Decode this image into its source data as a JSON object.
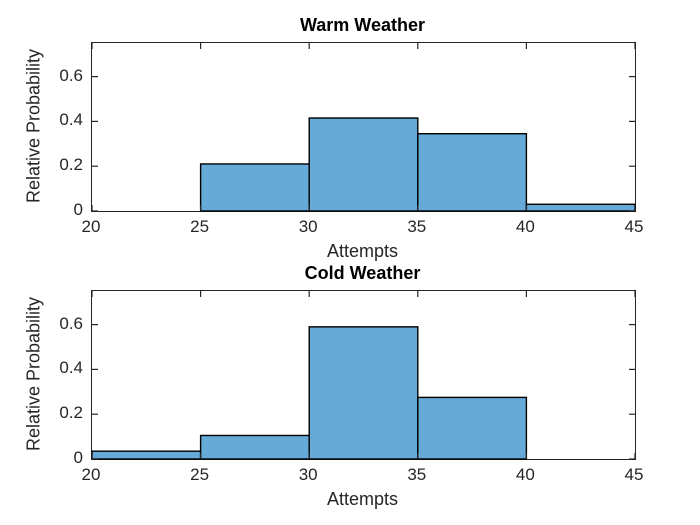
{
  "figure": {
    "background": "#ffffff",
    "axis_color": "#262626",
    "title_color": "#000000"
  },
  "chart_data": [
    {
      "type": "bar",
      "title": "Warm Weather",
      "xlabel": "Attempts",
      "ylabel": "Relative Probability",
      "xlim": [
        20,
        45
      ],
      "ylim": [
        0,
        0.75
      ],
      "xticks": [
        20,
        25,
        30,
        35,
        40,
        45
      ],
      "yticks": [
        0,
        0.2,
        0.4,
        0.6
      ],
      "bin_edges": [
        20,
        25,
        30,
        35,
        40,
        45
      ],
      "values": [
        0,
        0.21,
        0.415,
        0.345,
        0.03
      ],
      "bar_fill": "#66aad7",
      "bar_edge": "#000000",
      "grid": false,
      "legend": null
    },
    {
      "type": "bar",
      "title": "Cold Weather",
      "xlabel": "Attempts",
      "ylabel": "Relative Probability",
      "xlim": [
        20,
        45
      ],
      "ylim": [
        0,
        0.75
      ],
      "xticks": [
        20,
        25,
        30,
        35,
        40,
        45
      ],
      "yticks": [
        0,
        0.2,
        0.4,
        0.6
      ],
      "bin_edges": [
        20,
        25,
        30,
        35,
        40,
        45
      ],
      "values": [
        0.035,
        0.105,
        0.59,
        0.275,
        0
      ],
      "bar_fill": "#66aad7",
      "bar_edge": "#000000",
      "grid": false,
      "legend": null
    }
  ]
}
